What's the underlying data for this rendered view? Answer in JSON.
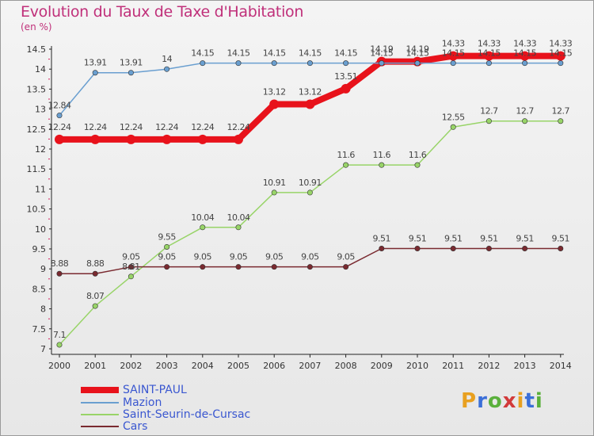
{
  "title": "Evolution du Taux de Taxe d'Habitation",
  "subtitle": "(en %)",
  "logo": {
    "text": "Proxiti",
    "colors": [
      "#e8a020",
      "#3b6fd8",
      "#5ab03c",
      "#d23a3a",
      "#e8a020",
      "#3b6fd8",
      "#5ab03c"
    ]
  },
  "chart_data": {
    "type": "line",
    "x": [
      "2000",
      "2001",
      "2002",
      "2003",
      "2004",
      "2005",
      "2006",
      "2007",
      "2008",
      "2009",
      "2010",
      "2011",
      "2012",
      "2013",
      "2014"
    ],
    "ylim": [
      7,
      14.5
    ],
    "yticks": [
      "7",
      "7.5",
      "8",
      "8.5",
      "9",
      "9.5",
      "10",
      "10.5",
      "11",
      "11.5",
      "12",
      "12.5",
      "13",
      "13.5",
      "14",
      "14.5"
    ],
    "grid": false,
    "legend_position": "bottom-left",
    "series": [
      {
        "name": "SAINT-PAUL",
        "color": "#e8121b",
        "width": 8,
        "values": [
          12.24,
          12.24,
          12.24,
          12.24,
          12.24,
          12.24,
          13.12,
          13.12,
          13.51,
          14.19,
          14.19,
          14.33,
          14.33,
          14.33,
          14.33
        ],
        "labels": [
          "12.24",
          "12.24",
          "12.24",
          "12.24",
          "12.24",
          "12.24",
          "13.12",
          "13.12",
          "13.51",
          "14.19",
          "14.19",
          "14.33",
          "14.33",
          "14.33",
          "14.33"
        ]
      },
      {
        "name": "Mazion",
        "color": "#6a9fd0",
        "width": 1.5,
        "values": [
          12.84,
          13.91,
          13.91,
          14,
          14.15,
          14.15,
          14.15,
          14.15,
          14.15,
          14.15,
          14.15,
          14.15,
          14.15,
          14.15,
          14.15
        ],
        "labels": [
          "12.84",
          "13.91",
          "13.91",
          "14",
          "14.15",
          "14.15",
          "14.15",
          "14.15",
          "14.15",
          "14.15",
          "14.15",
          "14.15",
          "14.15",
          "14.15",
          "14.15"
        ]
      },
      {
        "name": "Saint-Seurin-de-Cursac",
        "color": "#98d468",
        "width": 1.5,
        "values": [
          7.1,
          8.07,
          8.81,
          9.55,
          10.04,
          10.04,
          10.91,
          10.91,
          11.6,
          11.6,
          11.6,
          12.55,
          12.7,
          12.7,
          12.7
        ],
        "labels": [
          "7.1",
          "8.07",
          "8.81",
          "9.55",
          "10.04",
          "10.04",
          "10.91",
          "10.91",
          "11.6",
          "11.6",
          "11.6",
          "12.55",
          "12.7",
          "12.7",
          "12.7"
        ]
      },
      {
        "name": "Cars",
        "color": "#7a2a30",
        "width": 1.5,
        "values": [
          8.88,
          8.88,
          9.05,
          9.05,
          9.05,
          9.05,
          9.05,
          9.05,
          9.05,
          9.51,
          9.51,
          9.51,
          9.51,
          9.51,
          9.51
        ],
        "labels": [
          "8.88",
          "8.88",
          "9.05",
          "9.05",
          "9.05",
          "9.05",
          "9.05",
          "9.05",
          "9.05",
          "9.51",
          "9.51",
          "9.51",
          "9.51",
          "9.51",
          "9.51"
        ]
      }
    ]
  }
}
